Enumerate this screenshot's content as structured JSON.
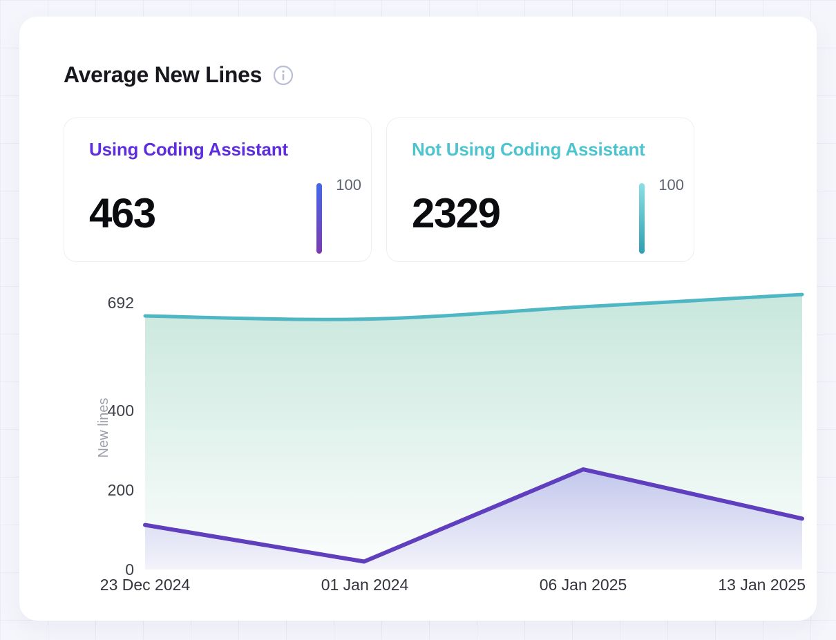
{
  "header": {
    "title": "Average New Lines"
  },
  "stats": [
    {
      "label": "Using Coding Assistant",
      "value": "463",
      "gauge_max": "100",
      "accent": "#5E2EDC",
      "bar_top": "#4468E8",
      "bar_bottom": "#7C3BAE"
    },
    {
      "label": "Not Using Coding Assistant",
      "value": "2329",
      "gauge_max": "100",
      "accent": "#4EC4CE",
      "bar_top": "#8BDFE5",
      "bar_bottom": "#2E9FB2"
    }
  ],
  "chart_data": {
    "type": "area",
    "title": "Average New Lines",
    "x": [
      "23 Dec 2024",
      "01 Jan 2024",
      "06 Jan 2025",
      "13 Jan 2025"
    ],
    "series": [
      {
        "name": "Using Coding Assistant",
        "values": [
          112,
          20,
          252,
          128
        ],
        "color": "#5F3FBE",
        "width": 6,
        "smooth": false,
        "fill_top": "rgba(105,92,225,0.30)",
        "fill_bottom": "rgba(140,115,230,0.08)"
      },
      {
        "name": "Not Using Coding Assistant",
        "values": [
          638,
          630,
          661,
          692
        ],
        "color": "#4FB6C4",
        "width": 5,
        "smooth": true,
        "fill_top": "rgba(88,182,150,0.33)",
        "fill_bottom": "rgba(88,182,150,0.02)"
      }
    ],
    "xlabel": "",
    "ylabel": "New lines",
    "yticks": [
      0,
      200,
      400,
      692
    ],
    "ylim": [
      0,
      704
    ],
    "grid": false,
    "legend_position": "none"
  },
  "colors": {
    "page_bg": "#F5F6FB",
    "grid_line": "#E9EBF5",
    "card_bg": "#FFFFFF",
    "title_text": "#17181D",
    "tick_text": "#3D4149",
    "axis_name_text": "#9BA0AA",
    "gauge_label_text": "#5C6372",
    "info_icon": "#B9BDD6"
  }
}
